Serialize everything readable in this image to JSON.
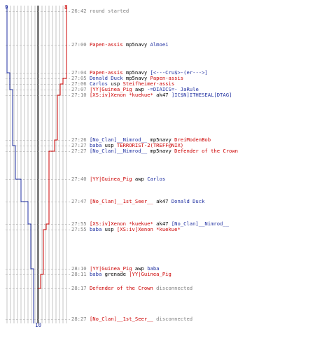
{
  "colors": {
    "red": "#cc0000",
    "blue": "#1f2fa0",
    "grid": "#bfbfbf",
    "time": "#808080"
  },
  "scores": {
    "blue_start": "9",
    "red_start": "8",
    "bottom_end": "10"
  },
  "events": [
    {
      "time": "26:42",
      "parts": [
        {
          "text": "round started",
          "c": "msg"
        }
      ]
    },
    {
      "time": "27:00",
      "parts": [
        {
          "text": "Papen-assis",
          "c": "r"
        },
        {
          "text": " mp5navy ",
          "c": "w"
        },
        {
          "text": "Almoei",
          "c": "b"
        }
      ]
    },
    {
      "time": "27:04",
      "parts": [
        {
          "text": "Papen-assis",
          "c": "r"
        },
        {
          "text": " mp5navy ",
          "c": "w"
        },
        {
          "text": "[<---Cru$>-(er--->]",
          "c": "b"
        }
      ]
    },
    {
      "time": "27:05",
      "parts": [
        {
          "text": "Donald Duck",
          "c": "b"
        },
        {
          "text": " mp5navy ",
          "c": "w"
        },
        {
          "text": "Papen-assis",
          "c": "r"
        }
      ]
    },
    {
      "time": "27:06",
      "parts": [
        {
          "text": "Carlos",
          "c": "b"
        },
        {
          "text": " usp ",
          "c": "w"
        },
        {
          "text": "Steifheimer-assis",
          "c": "r"
        }
      ]
    },
    {
      "time": "27:07",
      "parts": [
        {
          "text": "|YY|Guinea_Pig",
          "c": "r"
        },
        {
          "text": " awp ",
          "c": "w"
        },
        {
          "text": "-=DIAICS=- JaRule",
          "c": "b"
        }
      ]
    },
    {
      "time": "27:10",
      "parts": [
        {
          "text": "[XS:iv]Xenon *kuekue*",
          "c": "r"
        },
        {
          "text": " ak47 ",
          "c": "w"
        },
        {
          "text": "]IC$N]ITHESEAL[DTAG]",
          "c": "b"
        }
      ]
    },
    {
      "time": "27:26",
      "parts": [
        {
          "text": "[No_Clan]__Nimrod__",
          "c": "b"
        },
        {
          "text": " mp5navy ",
          "c": "w"
        },
        {
          "text": "DreiModenBob",
          "c": "r"
        }
      ]
    },
    {
      "time": "27:27",
      "parts": [
        {
          "text": "baba",
          "c": "b"
        },
        {
          "text": " usp ",
          "c": "w"
        },
        {
          "text": "TERRORIST-2(TREFF@NIX)",
          "c": "r"
        }
      ]
    },
    {
      "time": "27:27",
      "parts": [
        {
          "text": "[No_Clan]__Nimrod__",
          "c": "b"
        },
        {
          "text": " mp5navy ",
          "c": "w"
        },
        {
          "text": "Defender of the Crown",
          "c": "r"
        }
      ]
    },
    {
      "time": "27:40",
      "parts": [
        {
          "text": "|YY|Guinea_Pig",
          "c": "r"
        },
        {
          "text": " awp ",
          "c": "w"
        },
        {
          "text": "Carlos",
          "c": "b"
        }
      ]
    },
    {
      "time": "27:47",
      "parts": [
        {
          "text": "[No_Clan]__1st_Seer__",
          "c": "r"
        },
        {
          "text": " ak47 ",
          "c": "w"
        },
        {
          "text": "Donald Duck",
          "c": "b"
        }
      ]
    },
    {
      "time": "27:55",
      "parts": [
        {
          "text": "[XS:iv]Xenon *kuekue*",
          "c": "r"
        },
        {
          "text": " ak47 ",
          "c": "w"
        },
        {
          "text": "[No_Clan]__Nimrod__",
          "c": "b"
        }
      ]
    },
    {
      "time": "27:55",
      "parts": [
        {
          "text": "baba",
          "c": "b"
        },
        {
          "text": " usp ",
          "c": "w"
        },
        {
          "text": "[XS:iv]Xenon *kuekue*",
          "c": "r"
        }
      ]
    },
    {
      "time": "28:10",
      "parts": [
        {
          "text": "|YY|Guinea_Pig",
          "c": "r"
        },
        {
          "text": " awp ",
          "c": "w"
        },
        {
          "text": "baba",
          "c": "b"
        }
      ]
    },
    {
      "time": "28:11",
      "parts": [
        {
          "text": "baba",
          "c": "b"
        },
        {
          "text": " grenade ",
          "c": "w"
        },
        {
          "text": "|YY|Guinea_Pig",
          "c": "r"
        }
      ]
    },
    {
      "time": "28:17",
      "parts": [
        {
          "text": "Defender of the Crown",
          "c": "r"
        },
        {
          "text": " disconnected",
          "c": "msg"
        }
      ]
    },
    {
      "time": "28:27",
      "parts": [
        {
          "text": "[No_Clan]__1st_Seer__",
          "c": "r"
        },
        {
          "text": " disconnected",
          "c": "msg"
        }
      ]
    }
  ]
}
